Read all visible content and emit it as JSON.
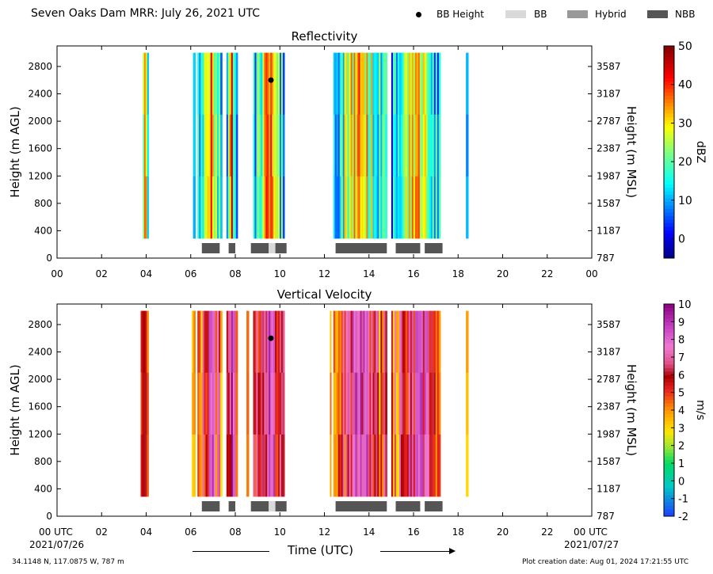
{
  "header": {
    "title": "Seven Oaks Dam MRR:  July 26, 2021 UTC",
    "legend": {
      "bb_height": {
        "label": "BB Height",
        "color": "#000000"
      },
      "bb": {
        "label": "BB",
        "color": "#d9d9d9"
      },
      "hybrid": {
        "label": "Hybrid",
        "color": "#999999"
      },
      "nbb": {
        "label": "NBB",
        "color": "#555555"
      }
    }
  },
  "footer": {
    "location": "34.1148 N, 117.0875 W, 787 m",
    "creation": "Plot creation date: Aug 01, 2024 17:21:55 UTC",
    "xlabel": "Time (UTC)",
    "start_tick": "00 UTC",
    "start_date": "2021/07/26",
    "end_tick": "00 UTC",
    "end_date": "2021/07/27"
  },
  "chart_data": [
    {
      "type": "heatmap",
      "title": "Reflectivity",
      "xlabel": "",
      "ylabel": "Height (m AGL)",
      "ylabel_right": "Height (m MSL)",
      "xlim": [
        0,
        24
      ],
      "ylim": [
        0,
        3100
      ],
      "xticks": [
        "00",
        "02",
        "04",
        "06",
        "08",
        "10",
        "12",
        "14",
        "16",
        "18",
        "20",
        "22",
        "00"
      ],
      "yticks": [
        0,
        400,
        800,
        1200,
        1600,
        2000,
        2400,
        2800
      ],
      "yticks_right": [
        787,
        1187,
        1587,
        1987,
        2387,
        2787,
        3187,
        3587
      ],
      "colorbar": {
        "label": "dBZ",
        "range": [
          -5,
          50
        ],
        "ticks": [
          0,
          10,
          20,
          30,
          40,
          50
        ]
      },
      "echo_periods_hours": [
        [
          3.85,
          4.1
        ],
        [
          6.1,
          6.2
        ],
        [
          6.3,
          7.4
        ],
        [
          7.6,
          8.1
        ],
        [
          8.8,
          10.2
        ],
        [
          12.4,
          14.8
        ],
        [
          15.0,
          17.2
        ],
        [
          18.35,
          18.45
        ]
      ],
      "echo_top_m": 3000,
      "echo_base_m": 290,
      "bright_band_height": [
        {
          "x": 9.6,
          "y": 2600
        }
      ],
      "bb_type_segments": [
        {
          "type": "NBB",
          "start": 6.5,
          "end": 7.3
        },
        {
          "type": "NBB",
          "start": 7.7,
          "end": 8.0
        },
        {
          "type": "NBB",
          "start": 8.7,
          "end": 9.5
        },
        {
          "type": "BB",
          "start": 9.5,
          "end": 9.8
        },
        {
          "type": "NBB",
          "start": 9.8,
          "end": 10.3
        },
        {
          "type": "NBB",
          "start": 12.5,
          "end": 14.8
        },
        {
          "type": "NBB",
          "start": 15.2,
          "end": 16.3
        },
        {
          "type": "NBB",
          "start": 16.5,
          "end": 17.3
        }
      ]
    },
    {
      "type": "heatmap",
      "title": "Vertical Velocity",
      "xlabel": "Time (UTC)",
      "ylabel": "Height (m AGL)",
      "ylabel_right": "Height (m MSL)",
      "xlim": [
        0,
        24
      ],
      "ylim": [
        0,
        3100
      ],
      "xticks": [
        "00 UTC",
        "02",
        "04",
        "06",
        "08",
        "10",
        "12",
        "14",
        "16",
        "18",
        "20",
        "22",
        "00 UTC"
      ],
      "yticks": [
        0,
        400,
        800,
        1200,
        1600,
        2000,
        2400,
        2800
      ],
      "yticks_right": [
        787,
        1187,
        1587,
        1987,
        2387,
        2787,
        3187,
        3587
      ],
      "colorbar": {
        "label": "m/s",
        "range": [
          -2,
          10
        ],
        "ticks": [
          -2,
          -1,
          0,
          1,
          2,
          3,
          4,
          5,
          6,
          7,
          8,
          9,
          10
        ]
      },
      "echo_periods_hours": [
        [
          3.75,
          4.1
        ],
        [
          6.05,
          6.2
        ],
        [
          6.3,
          7.4
        ],
        [
          7.6,
          8.1
        ],
        [
          8.5,
          8.6
        ],
        [
          8.8,
          10.2
        ],
        [
          12.25,
          12.3
        ],
        [
          12.4,
          14.8
        ],
        [
          15.0,
          17.2
        ],
        [
          18.35,
          18.45
        ]
      ],
      "echo_top_m": 3000,
      "echo_base_m": 290,
      "bright_band_height": [
        {
          "x": 9.6,
          "y": 2600
        }
      ],
      "bb_type_segments": [
        {
          "type": "NBB",
          "start": 6.5,
          "end": 7.3
        },
        {
          "type": "NBB",
          "start": 7.7,
          "end": 8.0
        },
        {
          "type": "NBB",
          "start": 8.7,
          "end": 9.5
        },
        {
          "type": "BB",
          "start": 9.5,
          "end": 9.8
        },
        {
          "type": "NBB",
          "start": 9.8,
          "end": 10.3
        },
        {
          "type": "NBB",
          "start": 12.5,
          "end": 14.8
        },
        {
          "type": "NBB",
          "start": 15.2,
          "end": 16.3
        },
        {
          "type": "NBB",
          "start": 16.5,
          "end": 17.3
        }
      ]
    }
  ]
}
